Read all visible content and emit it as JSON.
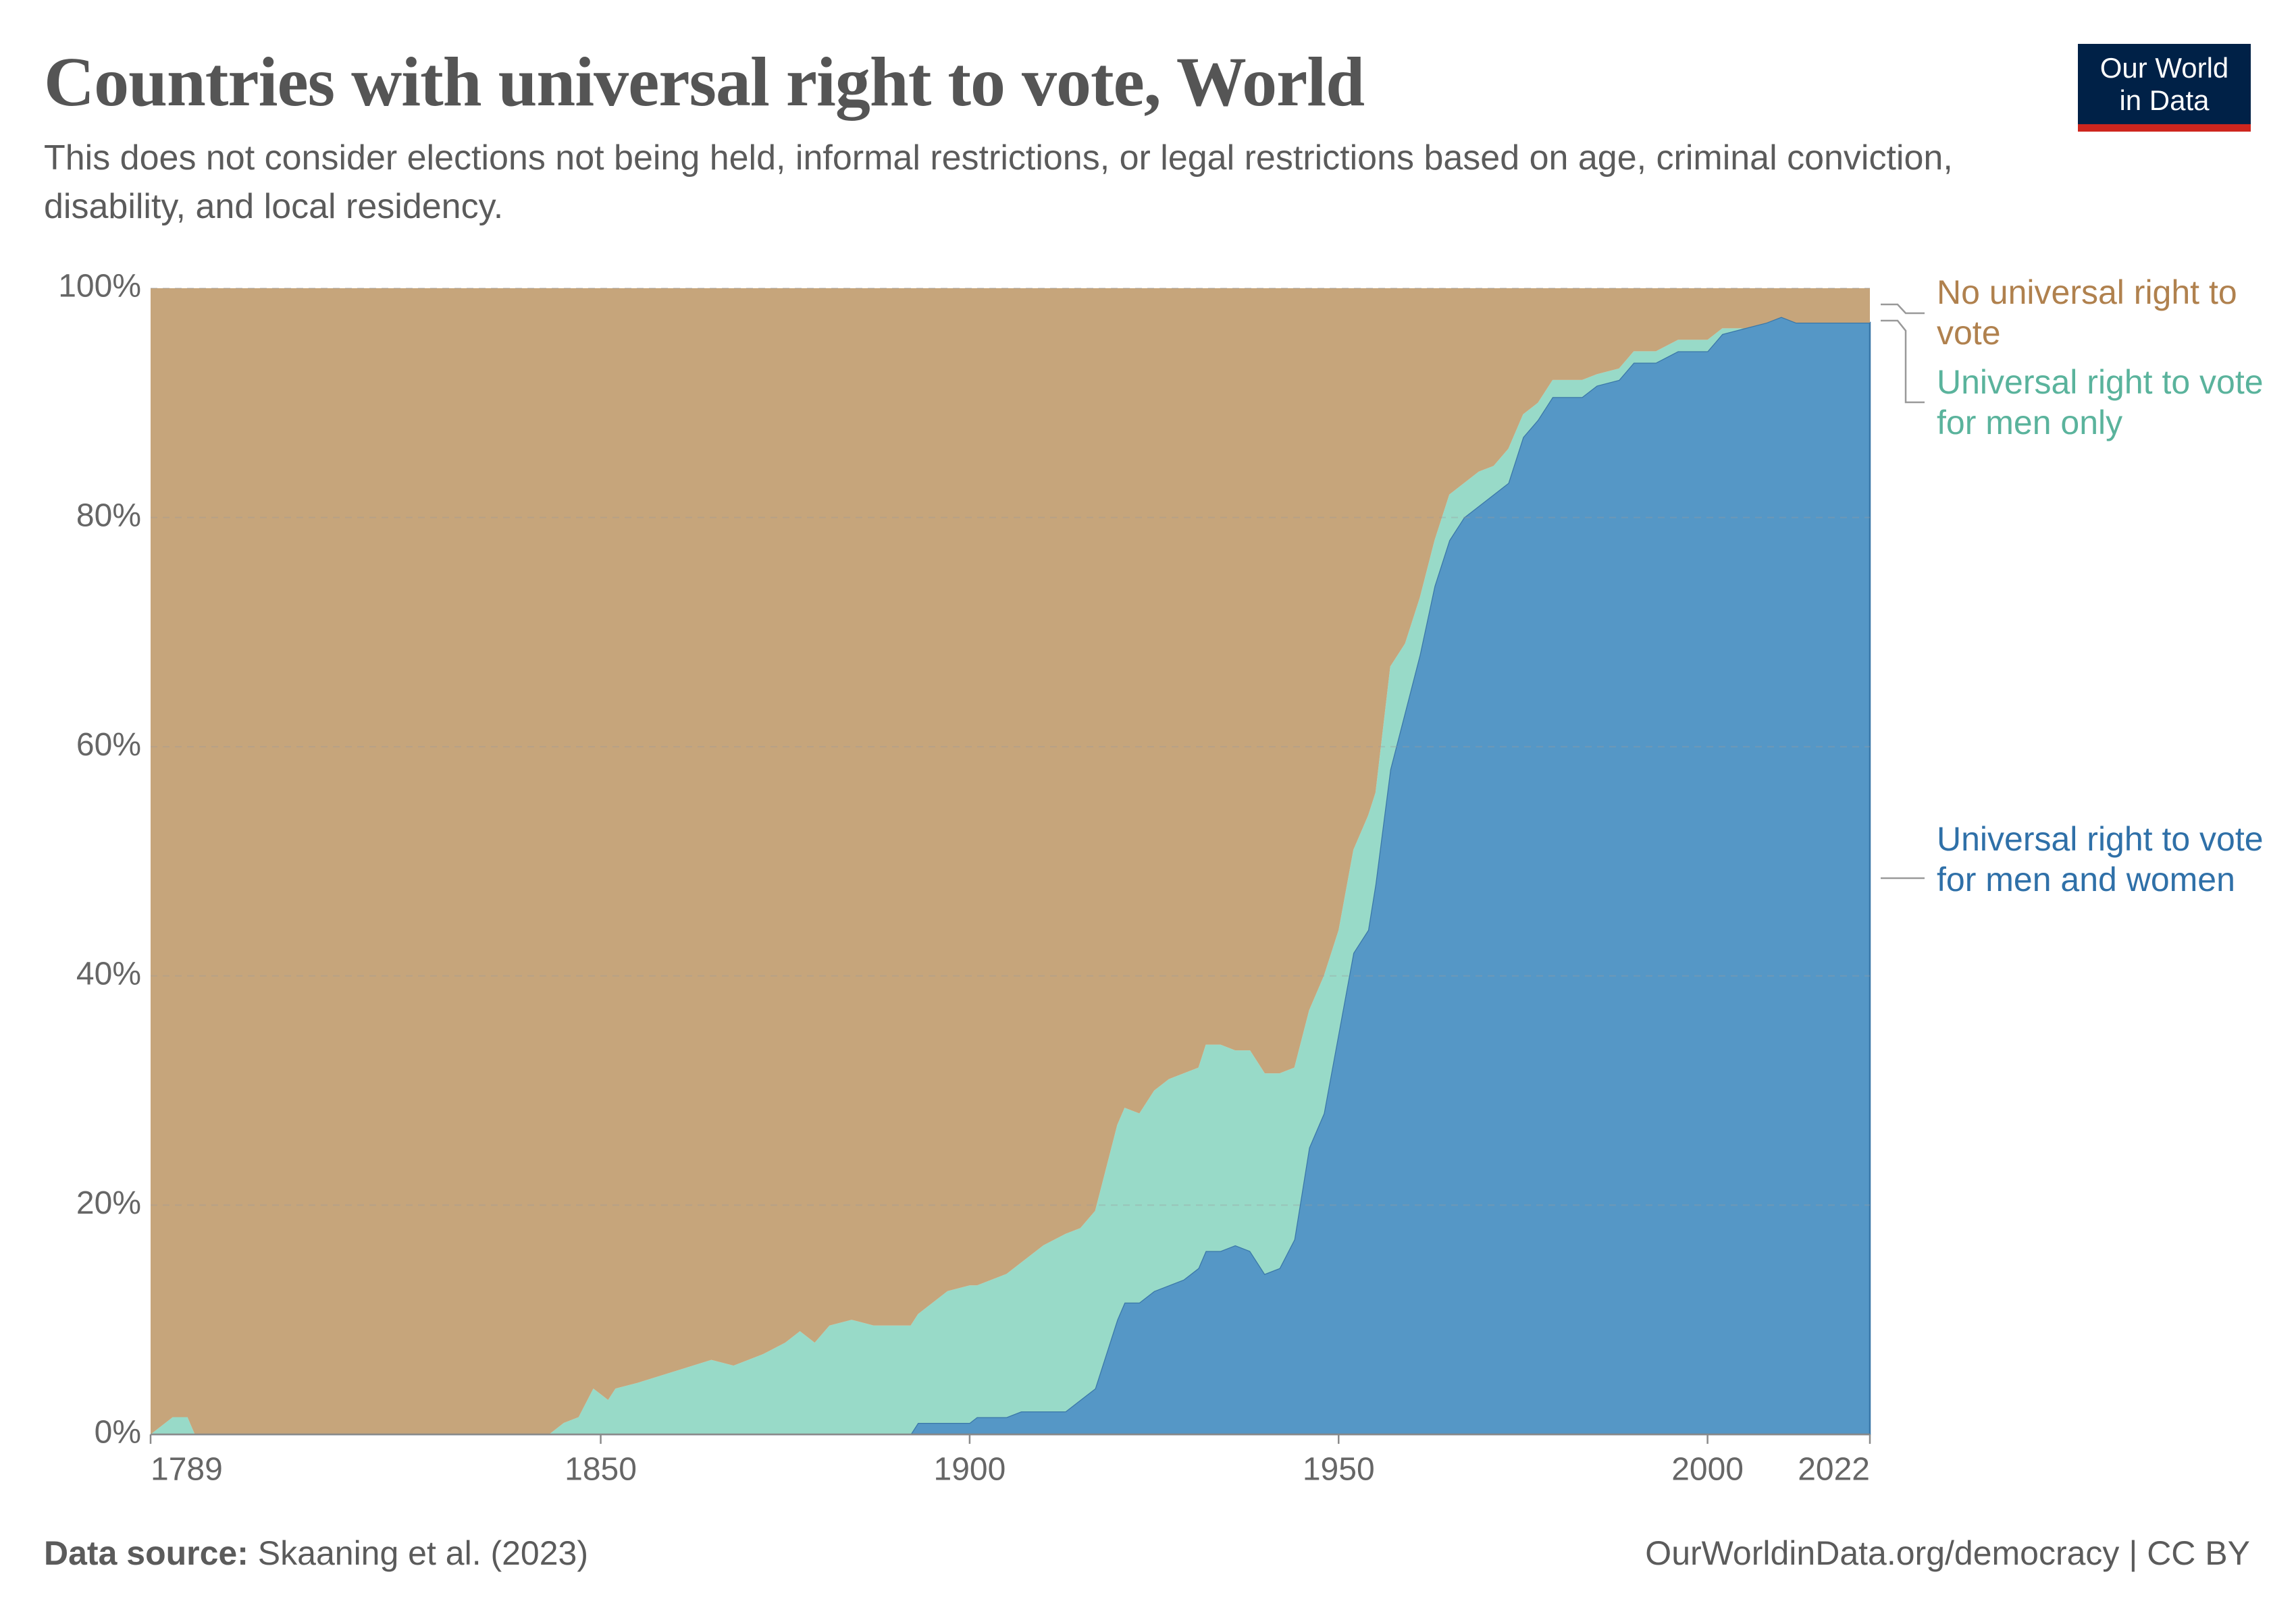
{
  "chart_data": {
    "type": "stacked-area",
    "title": "Countries with universal right to vote, World",
    "subtitle": "This does not consider elections not being held, informal restrictions, or legal restrictions based on age, criminal conviction, disability, and local residency.",
    "source_label": "Data source:",
    "source": "Skaaning et al. (2023)",
    "credit": "OurWorldinData.org/democracy | CC BY",
    "logo": "Our World in Data",
    "x": [
      1789,
      1792,
      1794,
      1795,
      1843,
      1845,
      1847,
      1849,
      1851,
      1852,
      1855,
      1860,
      1865,
      1868,
      1870,
      1872,
      1875,
      1877,
      1879,
      1881,
      1884,
      1887,
      1890,
      1892,
      1893,
      1895,
      1897,
      1900,
      1901,
      1903,
      1905,
      1907,
      1910,
      1913,
      1915,
      1917,
      1918,
      1920,
      1921,
      1923,
      1925,
      1927,
      1929,
      1931,
      1932,
      1934,
      1936,
      1938,
      1940,
      1942,
      1944,
      1946,
      1948,
      1950,
      1952,
      1954,
      1955,
      1957,
      1959,
      1961,
      1963,
      1965,
      1967,
      1969,
      1971,
      1973,
      1975,
      1977,
      1979,
      1983,
      1985,
      1988,
      1990,
      1993,
      1996,
      2000,
      2002,
      2005,
      2008,
      2010,
      2012,
      2022
    ],
    "series": [
      {
        "name": "Universal right to vote for men and women",
        "color": "#5597c6",
        "values": [
          0,
          0,
          0,
          0,
          0,
          0,
          0,
          0,
          0,
          0,
          0,
          0,
          0,
          0,
          0,
          0,
          0,
          0,
          0,
          0,
          0,
          0,
          0,
          0,
          1,
          1,
          1,
          1,
          1.5,
          1.5,
          1.5,
          2,
          2,
          2,
          3,
          4,
          6,
          10,
          11.5,
          11.5,
          12.5,
          13,
          13.5,
          14.5,
          16,
          16,
          16.5,
          16,
          14,
          14.5,
          17,
          25,
          28,
          35,
          42,
          44,
          48,
          58,
          63,
          68,
          74,
          78,
          80,
          81,
          82,
          83,
          87,
          88.5,
          90.5,
          90.5,
          91.5,
          92,
          93.5,
          93.5,
          94.5,
          94.5,
          96,
          96.5,
          97,
          97.5,
          97,
          97
        ]
      },
      {
        "name": "Universal right to vote for men only",
        "color": "#98dac8",
        "values": [
          0,
          1.5,
          1.5,
          0,
          0,
          1,
          1.5,
          4,
          3,
          4,
          4.5,
          5.5,
          6.5,
          6,
          6.5,
          7,
          8,
          9,
          8,
          9.5,
          10,
          9.5,
          9.5,
          9.5,
          9.5,
          10.5,
          11.5,
          12,
          11.5,
          12,
          12.5,
          13,
          14.5,
          15.5,
          15,
          15.5,
          16,
          17,
          17,
          16.5,
          17.5,
          18,
          18,
          17.5,
          18,
          18,
          17,
          17.5,
          17.5,
          17,
          15,
          12,
          12,
          9,
          9,
          10,
          8,
          9,
          6,
          5,
          4,
          4,
          3,
          3,
          2.5,
          3,
          2,
          1.5,
          1.5,
          1.5,
          1,
          1,
          1,
          1,
          1,
          1,
          0.5,
          0,
          0,
          0,
          0,
          0
        ]
      },
      {
        "name": "No universal right to vote",
        "color": "#c6a57b",
        "values": [
          100,
          98.5,
          98.5,
          100,
          100,
          99,
          98.5,
          96,
          97,
          96,
          95.5,
          94.5,
          93.5,
          94,
          93.5,
          93,
          92,
          91,
          92,
          90.5,
          90,
          90.5,
          90.5,
          90.5,
          89.5,
          88.5,
          87.5,
          87,
          87,
          86.5,
          86,
          85,
          83.5,
          82.5,
          82,
          80.5,
          78,
          73,
          71.5,
          72,
          70,
          69,
          68.5,
          68,
          66,
          66,
          66.5,
          66.5,
          68.5,
          68.5,
          68,
          63,
          60,
          56,
          49,
          46,
          44,
          33,
          31,
          27,
          22,
          18,
          17,
          16,
          15.5,
          14,
          11,
          10,
          8,
          8,
          7.5,
          7,
          5.5,
          5.5,
          4.5,
          4.5,
          3.5,
          3.5,
          3,
          2.5,
          3,
          3
        ]
      }
    ],
    "legend_colors": [
      "#2f70a8",
      "#5ab39c",
      "#b0814e"
    ],
    "xlim": [
      1789,
      2022
    ],
    "xticks": [
      1789,
      1850,
      1900,
      1950,
      2000,
      2022
    ],
    "ylim": [
      0,
      100
    ],
    "yticks": [
      {
        "value": 0,
        "label": "0%"
      },
      {
        "value": 20,
        "label": "20%"
      },
      {
        "value": 40,
        "label": "40%"
      },
      {
        "value": 60,
        "label": "60%"
      },
      {
        "value": 80,
        "label": "80%"
      },
      {
        "value": 100,
        "label": "100%"
      }
    ],
    "grid": true
  }
}
